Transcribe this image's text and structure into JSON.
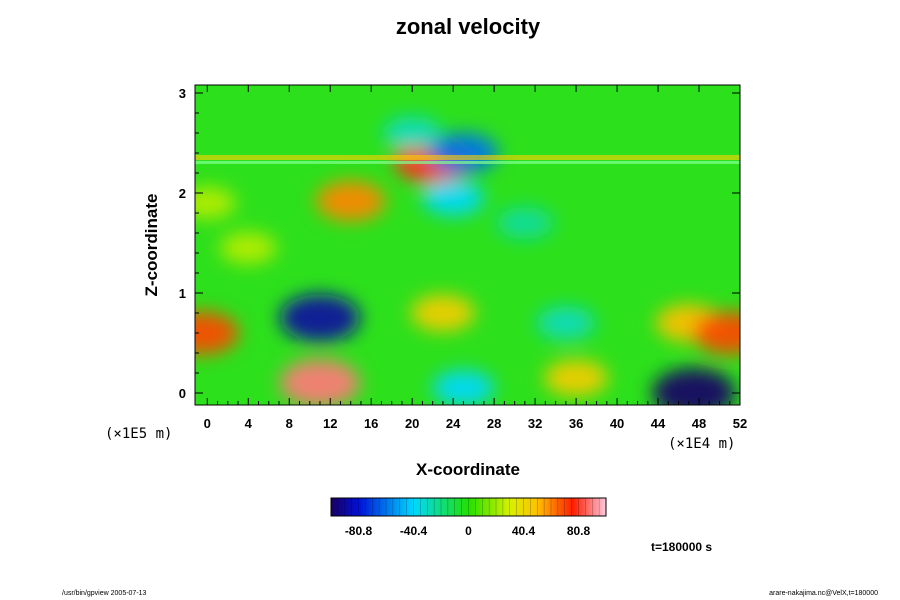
{
  "chart_data": {
    "type": "heatmap",
    "title": "zonal velocity",
    "xlabel": "X-coordinate",
    "ylabel": "Z-coordinate",
    "x_unit": "(×1E4 m)",
    "y_unit": "(×1E5 m)",
    "xlim": [
      -1.2,
      52
    ],
    "ylim": [
      -0.12,
      3.08
    ],
    "x_ticks": [
      "0",
      "4",
      "8",
      "12",
      "16",
      "20",
      "24",
      "28",
      "32",
      "36",
      "40",
      "44",
      "48",
      "52"
    ],
    "y_ticks": [
      "0",
      "1",
      "2",
      "3"
    ],
    "x_tick_values": [
      0,
      4,
      8,
      12,
      16,
      20,
      24,
      28,
      32,
      36,
      40,
      44,
      48,
      52
    ],
    "y_tick_values": [
      0,
      1,
      2,
      3
    ],
    "colorbar": {
      "range": [
        -101,
        101
      ],
      "tick_labels": [
        "-80.8",
        "-40.4",
        "0",
        "40.4",
        "80.8"
      ],
      "tick_values": [
        -80.8,
        -40.4,
        0,
        40.4,
        80.8
      ]
    },
    "features": [
      {
        "x": 11,
        "z": 0.75,
        "value": -90
      },
      {
        "x": 47.5,
        "z": 0.0,
        "value": -100
      },
      {
        "x": 11,
        "z": 0.1,
        "value": 90
      },
      {
        "x": 22,
        "z": 2.32,
        "value": 80
      },
      {
        "x": 14,
        "z": 1.92,
        "value": 60
      },
      {
        "x": 23,
        "z": 0.8,
        "value": 45
      },
      {
        "x": 47,
        "z": 0.7,
        "value": 50
      },
      {
        "x": 51,
        "z": 0.6,
        "value": 70
      },
      {
        "x": -0.5,
        "z": 0.6,
        "value": 70
      },
      {
        "x": 36,
        "z": 0.15,
        "value": 45
      },
      {
        "x": 25,
        "z": 2.4,
        "value": -60
      },
      {
        "x": 20,
        "z": 2.6,
        "value": -30
      },
      {
        "x": 35,
        "z": 0.7,
        "value": -30
      },
      {
        "x": 24,
        "z": 1.95,
        "value": -40
      },
      {
        "x": 31,
        "z": 1.7,
        "value": -25
      },
      {
        "x": 25,
        "z": 0.05,
        "value": -40
      },
      {
        "x": 4,
        "z": 1.45,
        "value": 25
      },
      {
        "x": 0,
        "z": 1.9,
        "value": 25
      }
    ]
  },
  "timestamp": "t=180000 s",
  "footer": {
    "left": "/usr/bin/gpview 2005-07-13",
    "right": "arare-nakajima.nc@VelX,t=180000"
  }
}
